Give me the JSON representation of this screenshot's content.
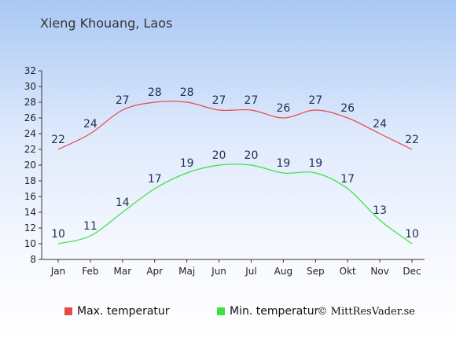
{
  "title": "Xieng Khouang, Laos",
  "copyright": "© MittResVader.se",
  "chart_data": {
    "type": "line",
    "categories": [
      "Jan",
      "Feb",
      "Mar",
      "Apr",
      "Maj",
      "Jun",
      "Jul",
      "Aug",
      "Sep",
      "Okt",
      "Nov",
      "Dec"
    ],
    "y_ticks": [
      8,
      10,
      12,
      14,
      16,
      18,
      20,
      22,
      24,
      26,
      28,
      30,
      32
    ],
    "ylim": [
      8,
      32
    ],
    "grid": false,
    "legend_position": "bottom-left",
    "series": [
      {
        "name": "Max. temperatur",
        "color": "#e84a4a",
        "values": [
          22,
          24,
          27,
          28,
          28,
          27,
          27,
          26,
          27,
          26,
          24,
          22
        ]
      },
      {
        "name": "Min. temperatur",
        "color": "#3ee03e",
        "values": [
          10,
          11,
          14,
          17,
          19,
          20,
          20,
          19,
          19,
          17,
          13,
          10
        ]
      }
    ]
  }
}
